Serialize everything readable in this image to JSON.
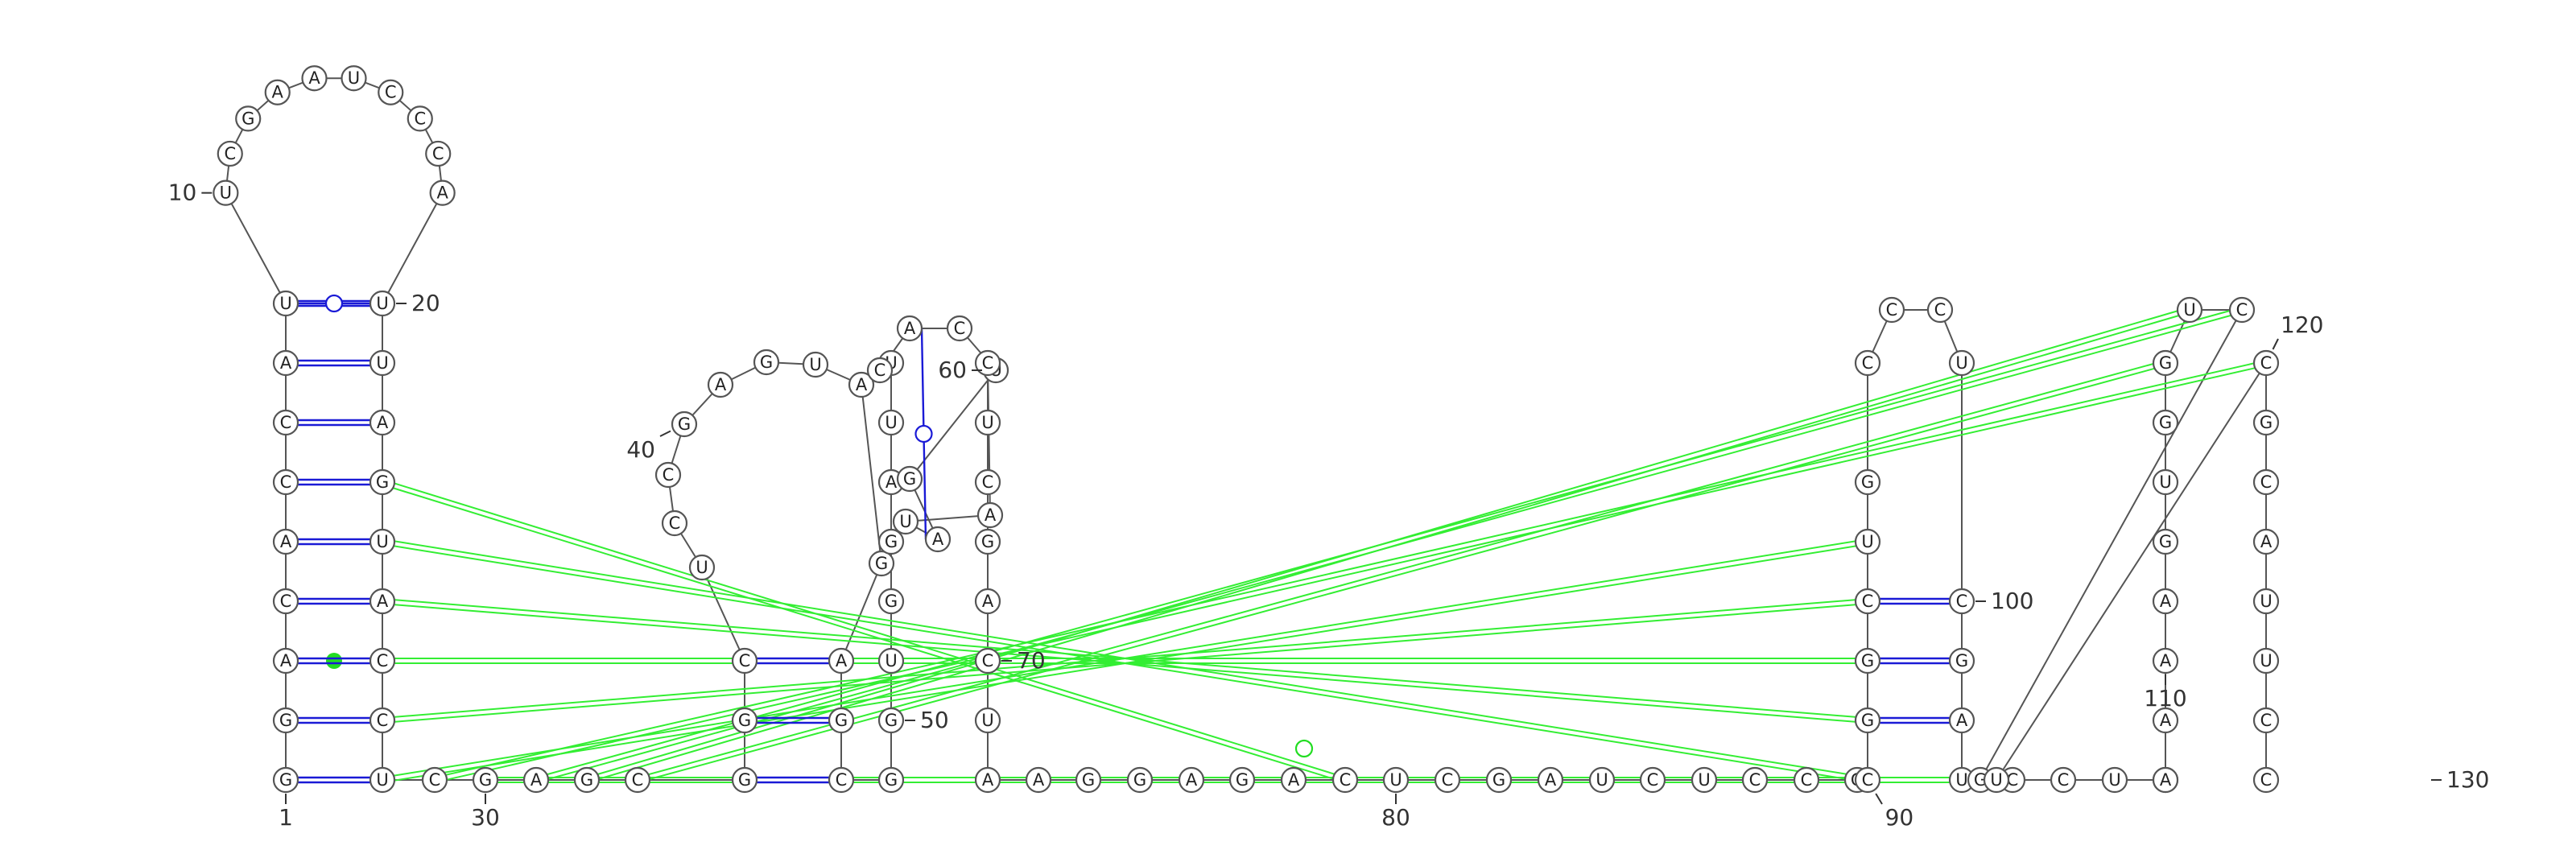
{
  "diagram": {
    "sequence": "GGACACCAUUCGAAUCCCAUUAGUACCUCGAGCGGCUCCGAGUAGAGCGGUGGAUUCACUGAUACUCGACUAAGGAGACUCGAUCUCCGCGGCUGCCCUCGAUCCUCAAAAGUGGUCGUCGCAUUCC",
    "position_labels": [
      {
        "pos": 1,
        "text": "1"
      },
      {
        "pos": 10,
        "text": "10"
      },
      {
        "pos": 20,
        "text": "20"
      },
      {
        "pos": 30,
        "text": "30"
      },
      {
        "pos": 40,
        "text": "40"
      },
      {
        "pos": 50,
        "text": "50"
      },
      {
        "pos": 60,
        "text": "60"
      },
      {
        "pos": 70,
        "text": "70"
      },
      {
        "pos": 80,
        "text": "80"
      },
      {
        "pos": 90,
        "text": "90"
      },
      {
        "pos": 100,
        "text": "100"
      },
      {
        "pos": 110,
        "text": "110"
      },
      {
        "pos": 120,
        "text": "120"
      },
      {
        "pos": 130,
        "text": "130"
      }
    ],
    "base_pairs": [
      [
        1,
        28
      ],
      [
        2,
        27
      ],
      [
        3,
        26
      ],
      [
        4,
        25
      ],
      [
        5,
        24
      ],
      [
        6,
        23
      ],
      [
        7,
        22
      ],
      [
        8,
        21
      ],
      [
        9,
        20
      ],
      [
        39,
        72
      ],
      [
        40,
        71
      ],
      [
        41,
        70
      ],
      [
        42,
        69
      ],
      [
        43,
        68
      ],
      [
        54,
        66
      ],
      [
        55,
        65
      ],
      [
        56,
        64
      ],
      [
        57,
        63
      ],
      [
        34,
        48
      ],
      [
        35,
        47
      ],
      [
        36,
        46
      ],
      [
        91,
        102
      ],
      [
        92,
        101
      ],
      [
        93,
        100
      ],
      [
        94,
        99
      ],
      [
        95,
        98
      ],
      [
        96,
        97
      ],
      [
        97,
        96
      ],
      [
        114,
        127
      ],
      [
        115,
        126
      ],
      [
        116,
        125
      ],
      [
        117,
        124
      ],
      [
        118,
        123
      ],
      [
        119,
        122
      ],
      [
        120,
        121
      ]
    ],
    "gu_pairs": [
      [
        58,
        62
      ],
      [
        9,
        20
      ]
    ],
    "tertiary_pairs": [
      [
        8,
        21
      ],
      [
        28,
        94
      ],
      [
        27,
        93
      ],
      [
        26,
        92
      ],
      [
        25,
        91
      ],
      [
        24,
        90
      ],
      [
        29,
        120
      ],
      [
        30,
        118
      ],
      [
        31,
        117
      ],
      [
        32,
        116
      ],
      [
        33,
        115
      ],
      [
        23,
        79
      ]
    ]
  }
}
